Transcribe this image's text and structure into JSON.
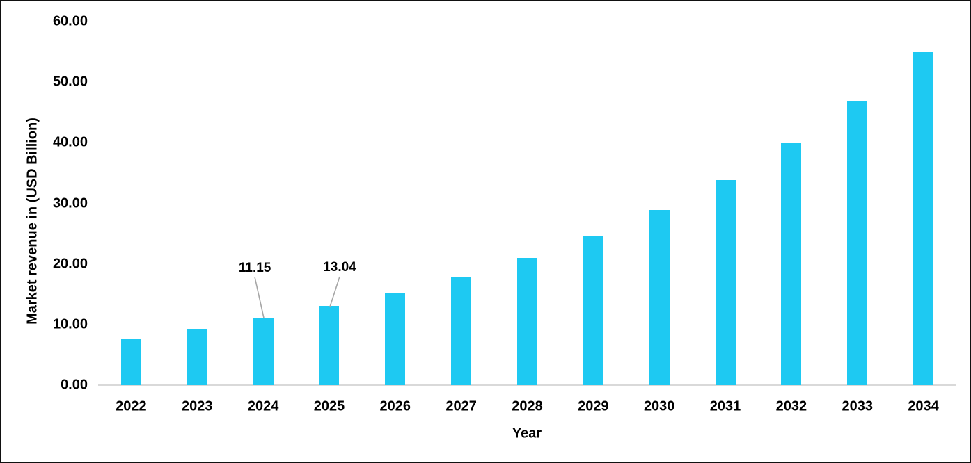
{
  "chart_data": {
    "type": "bar",
    "title": "",
    "xlabel": "Year",
    "ylabel": "Market revenue in (USD Billion)",
    "categories": [
      "2022",
      "2023",
      "2024",
      "2025",
      "2026",
      "2027",
      "2028",
      "2029",
      "2030",
      "2031",
      "2032",
      "2033",
      "2034"
    ],
    "series": [
      {
        "name": "Market revenue (USD Billion)",
        "values": [
          7.7,
          9.3,
          11.15,
          13.04,
          15.3,
          17.9,
          21.0,
          24.6,
          28.9,
          33.9,
          40.0,
          46.9,
          55.0
        ]
      }
    ],
    "ylim": [
      0,
      60
    ],
    "yticks": [
      0,
      10,
      20,
      30,
      40,
      50,
      60
    ],
    "ytick_decimals": 2,
    "grid": false,
    "legend_visible": false,
    "annotations": [
      {
        "category": "2024",
        "text": "11.15"
      },
      {
        "category": "2025",
        "text": "13.04"
      }
    ],
    "colors": {
      "bar": "#1EC9F2",
      "axis_line": "#D9D9D9",
      "leader_line": "#A6A6A6",
      "text": "#000000",
      "background": "#FFFFFF",
      "frame_border": "#111111"
    }
  }
}
